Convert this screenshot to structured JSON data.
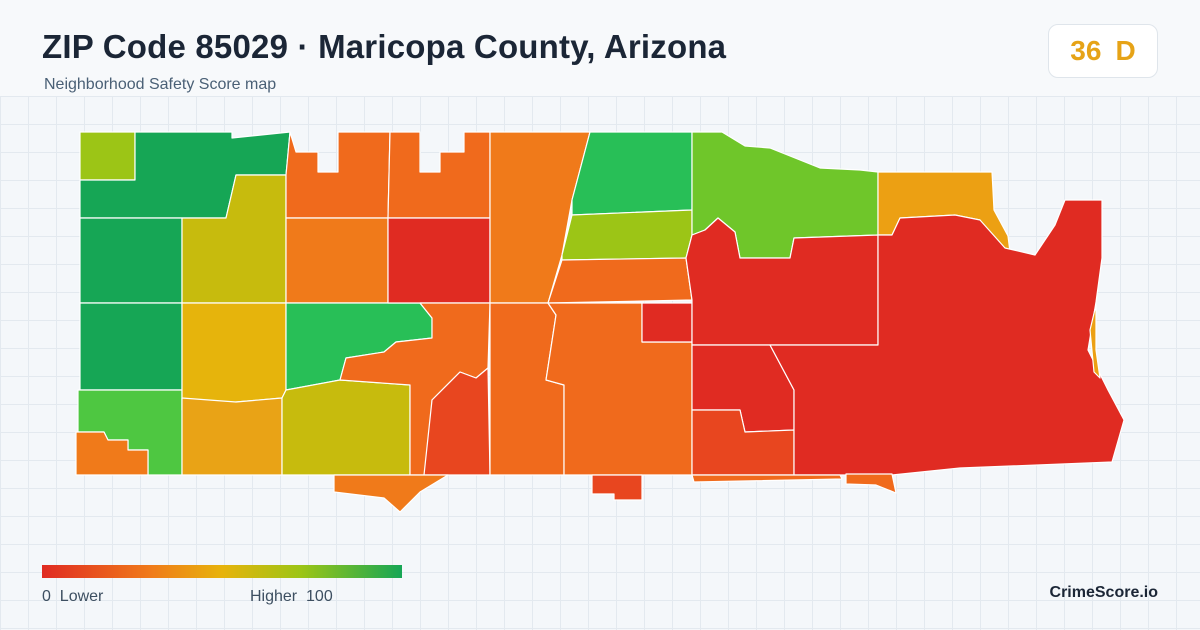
{
  "header": {
    "title": "ZIP Code 85029 · Maricopa County, Arizona",
    "subtitle": "Neighborhood Safety Score map"
  },
  "score": {
    "value": "36",
    "grade": "D",
    "color": "#e6a317"
  },
  "legend": {
    "min_label": "0  Lower",
    "max_label": "Higher  100",
    "gradient": [
      "#e02b22",
      "#f07a1a",
      "#e7b30c",
      "#9cc516",
      "#16a655"
    ]
  },
  "brand": "CrimeScore.io",
  "map": {
    "region_colors": {
      "dark_green": "#16a655",
      "green": "#28bf57",
      "light_green": "#6fc62a",
      "yellow_green": "#9cc516",
      "olive": "#c7bb0d",
      "yellow": "#e6b40c",
      "amber": "#eca013",
      "orange": "#f07a1a",
      "deep_orange": "#f06a1c",
      "red_orange": "#e8461f",
      "red": "#e02b22"
    }
  }
}
